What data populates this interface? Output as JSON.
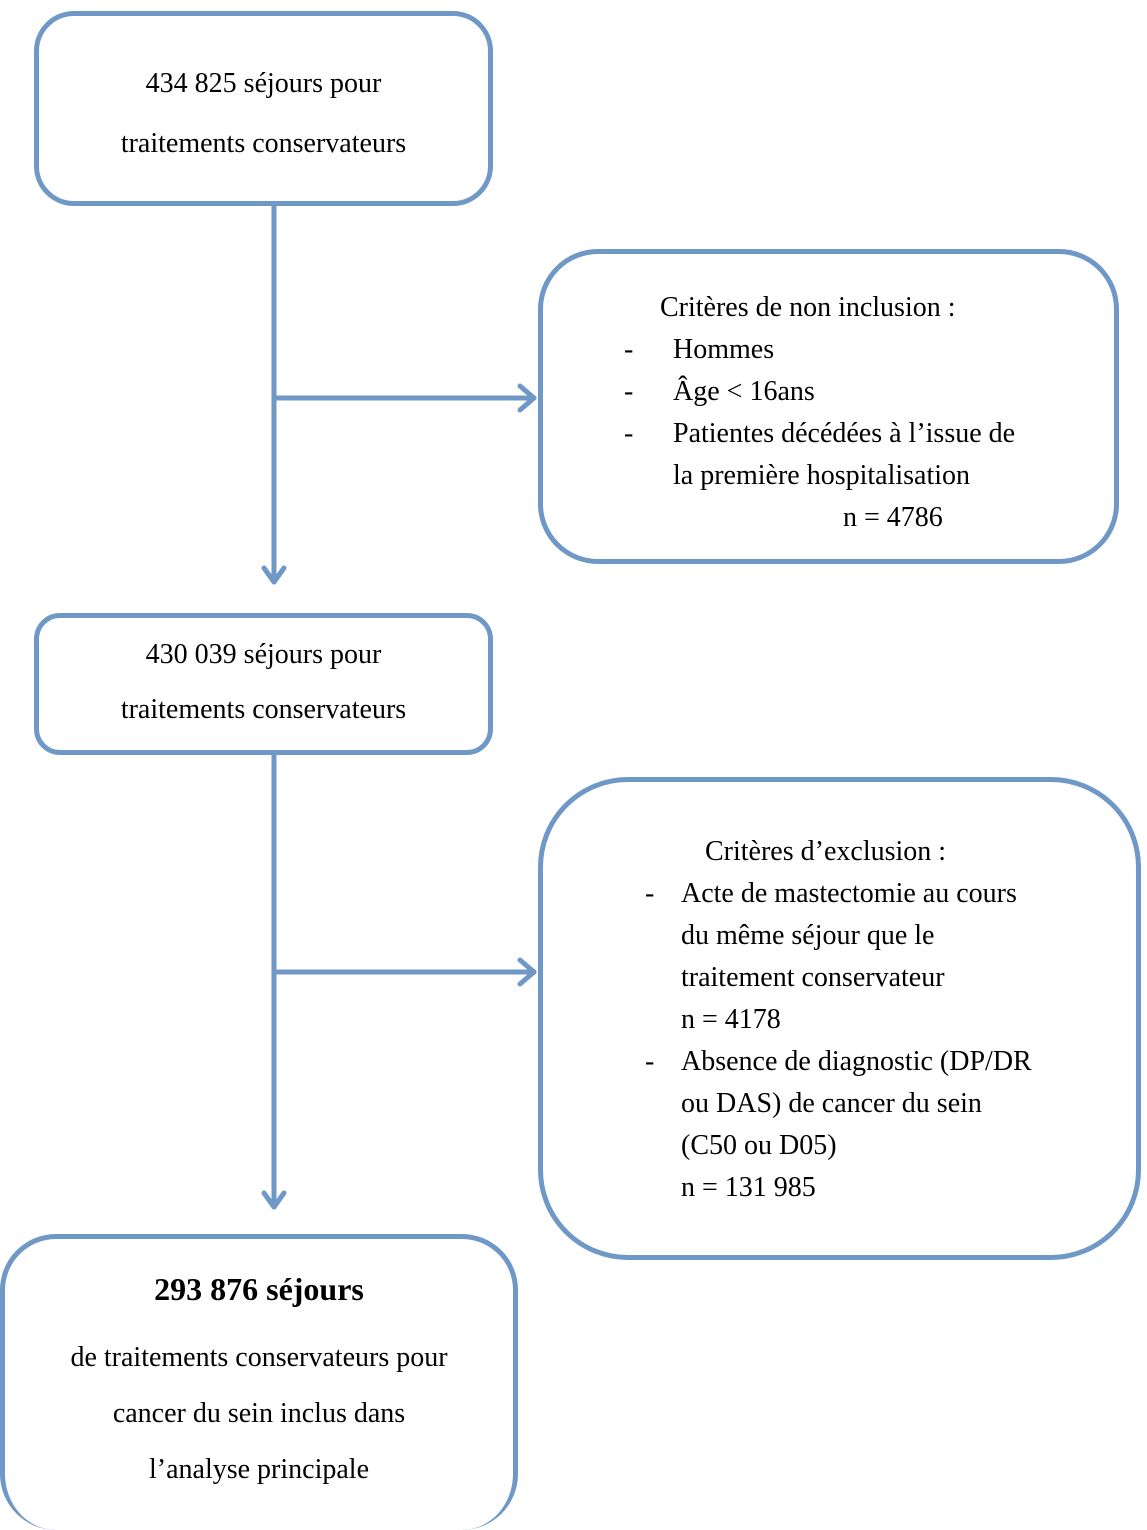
{
  "box1": {
    "line1": "434 825 séjours pour",
    "line2": "traitements  conservateurs"
  },
  "box2": {
    "title": "Critères de non inclusion :",
    "items": [
      "Hommes",
      "Âge  < 16ans",
      "Patientes décédées à l’issue de",
      "la première hospitalisation"
    ],
    "count": "n = 4786"
  },
  "box3": {
    "line1": "430 039 séjours pour",
    "line2": "traitements conservateurs"
  },
  "box4": {
    "title": "Critères d’exclusion :",
    "item1": [
      "Acte de mastectomie au cours",
      "du même séjour que le",
      "traitement conservateur",
      "n = 4178"
    ],
    "item2": [
      "Absence de diagnostic (DP/DR",
      "ou DAS) de cancer du sein",
      "(C50 ou D05)",
      "n = 131 985"
    ]
  },
  "box5": {
    "headline": "293 876  séjours",
    "line1": "de traitements conservateurs pour",
    "line2": "cancer du sein inclus dans",
    "line3": "l’analyse principale"
  },
  "dash": "-",
  "colors": {
    "stroke": "#6f98c6"
  }
}
